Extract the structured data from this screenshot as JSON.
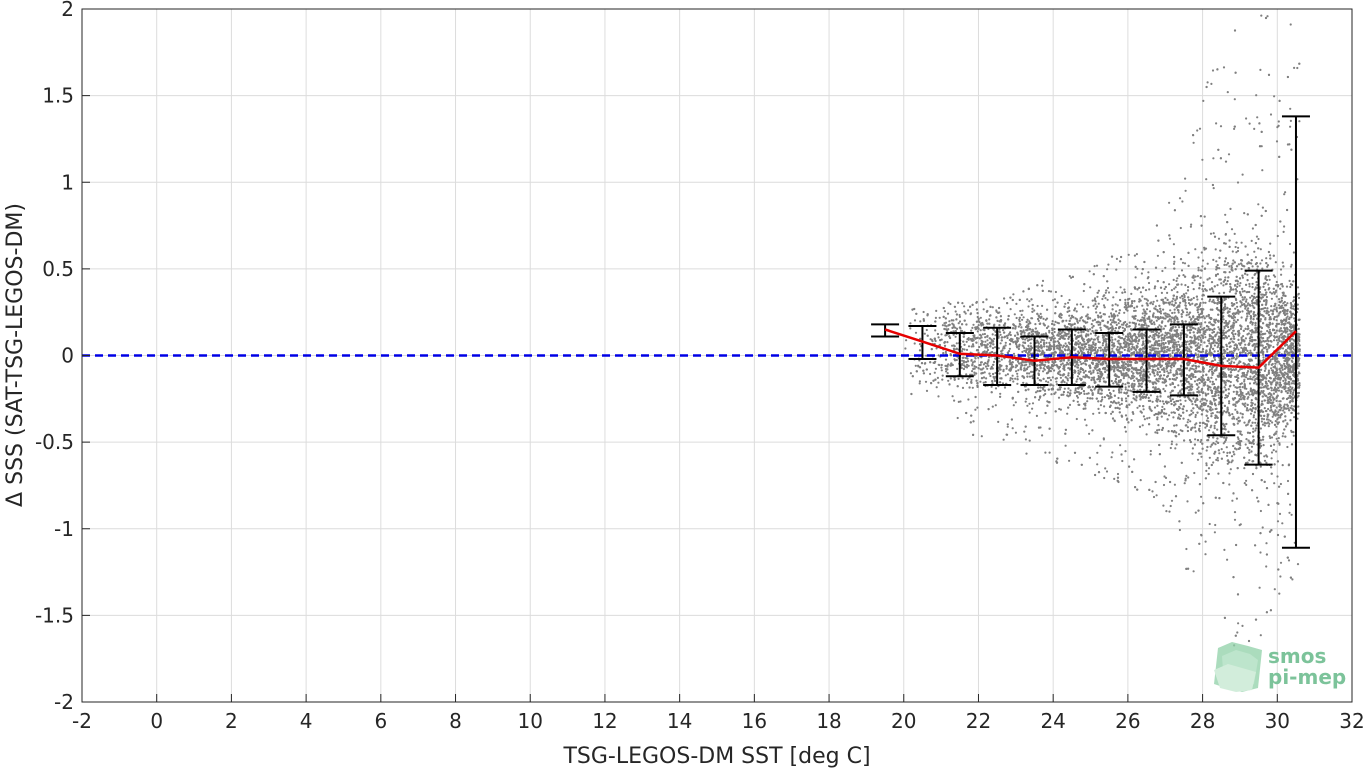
{
  "chart_data": {
    "type": "scatter",
    "title": "",
    "xlabel": "TSG-LEGOS-DM SST [deg C]",
    "ylabel": "Δ SSS (SAT-TSG-LEGOS-DM)",
    "xlim": [
      -2,
      32
    ],
    "ylim": [
      -2,
      2
    ],
    "xticks": [
      -2,
      0,
      2,
      4,
      6,
      8,
      10,
      12,
      14,
      16,
      18,
      20,
      22,
      24,
      26,
      28,
      30,
      32
    ],
    "yticks": [
      -2,
      -1.5,
      -1,
      -0.5,
      0,
      0.5,
      1,
      1.5,
      2
    ],
    "xtick_labels": [
      "-2",
      "0",
      "2",
      "4",
      "6",
      "8",
      "10",
      "12",
      "14",
      "16",
      "18",
      "20",
      "22",
      "24",
      "26",
      "28",
      "30",
      "32"
    ],
    "ytick_labels": [
      "-2",
      "-1.5",
      "-1",
      "-0.5",
      "0",
      "0.5",
      "1",
      "1.5",
      "2"
    ],
    "grid": true,
    "reference_line": {
      "y": 0,
      "style": "dashed",
      "color": "#0000e6"
    },
    "scatter_color": "#808080",
    "scatter_envelope": [
      {
        "x": 20.0,
        "lo": -0.15,
        "hi": 0.25,
        "min": -0.2,
        "max": 0.28
      },
      {
        "x": 21.0,
        "lo": -0.18,
        "hi": 0.25,
        "min": -0.32,
        "max": 0.3
      },
      {
        "x": 22.0,
        "lo": -0.2,
        "hi": 0.25,
        "min": -0.5,
        "max": 0.35
      },
      {
        "x": 23.0,
        "lo": -0.2,
        "hi": 0.25,
        "min": -0.55,
        "max": 0.4
      },
      {
        "x": 24.0,
        "lo": -0.22,
        "hi": 0.25,
        "min": -0.62,
        "max": 0.45
      },
      {
        "x": 25.0,
        "lo": -0.25,
        "hi": 0.28,
        "min": -0.68,
        "max": 0.55
      },
      {
        "x": 26.0,
        "lo": -0.28,
        "hi": 0.3,
        "min": -0.78,
        "max": 0.6
      },
      {
        "x": 27.0,
        "lo": -0.32,
        "hi": 0.35,
        "min": -0.9,
        "max": 0.8
      },
      {
        "x": 28.0,
        "lo": -0.5,
        "hi": 0.5,
        "min": -1.5,
        "max": 1.6
      },
      {
        "x": 29.0,
        "lo": -0.6,
        "hi": 0.6,
        "min": -1.9,
        "max": 2.0
      },
      {
        "x": 30.0,
        "lo": -0.5,
        "hi": 0.5,
        "min": -1.4,
        "max": 2.0
      },
      {
        "x": 30.5,
        "lo": -0.3,
        "hi": 0.3,
        "min": -1.3,
        "max": 1.9
      }
    ],
    "series": [
      {
        "type": "errorbar",
        "color": "#000000",
        "x": [
          19.5,
          20.5,
          21.5,
          22.5,
          23.5,
          24.5,
          25.5,
          26.5,
          27.5,
          28.5,
          29.5,
          30.5
        ],
        "lower": [
          0.11,
          -0.02,
          -0.12,
          -0.17,
          -0.17,
          -0.17,
          -0.18,
          -0.21,
          -0.23,
          -0.46,
          -0.63,
          -1.11
        ],
        "upper": [
          0.18,
          0.17,
          0.13,
          0.16,
          0.11,
          0.15,
          0.13,
          0.15,
          0.18,
          0.34,
          0.49,
          1.38
        ]
      },
      {
        "type": "line",
        "color": "#e60000",
        "x": [
          19.5,
          20.5,
          21.5,
          22.5,
          23.5,
          24.5,
          25.5,
          26.5,
          27.5,
          28.5,
          29.5,
          30.5
        ],
        "y": [
          0.15,
          0.08,
          0.01,
          0.0,
          -0.03,
          -0.01,
          -0.02,
          -0.02,
          -0.02,
          -0.06,
          -0.07,
          0.14
        ]
      }
    ]
  },
  "logo": {
    "line1": "smos",
    "line2": "pi-mep",
    "color": "#7cc39a"
  }
}
